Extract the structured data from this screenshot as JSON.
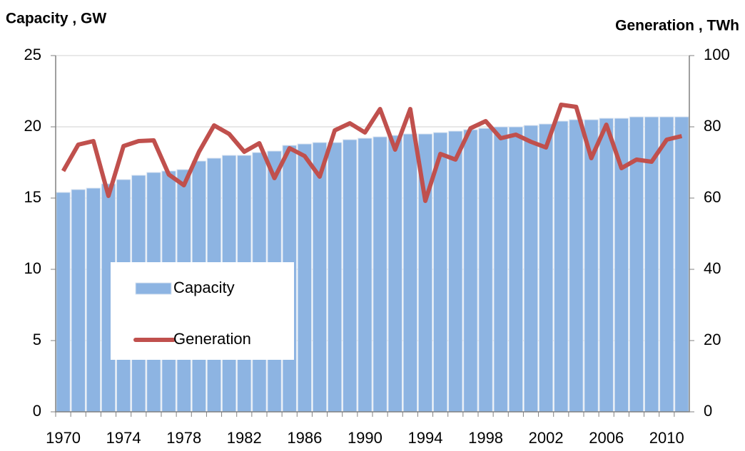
{
  "chart_data": {
    "type": "combo",
    "y_label": "Capacity , GW",
    "y2_label": "Generation , TWh",
    "categories": [
      "1970",
      null,
      null,
      null,
      "1974",
      null,
      null,
      null,
      "1978",
      null,
      null,
      null,
      "1982",
      null,
      null,
      null,
      "1986",
      null,
      null,
      null,
      "1990",
      null,
      null,
      null,
      "1994",
      null,
      null,
      null,
      "1998",
      null,
      null,
      null,
      "2002",
      null,
      null,
      null,
      "2006",
      null,
      null,
      null,
      "2010",
      null
    ],
    "series": [
      {
        "name": "Capacity",
        "type": "bar",
        "color": "#8db4e2",
        "axis": "y",
        "values": [
          15.4,
          15.6,
          15.7,
          16.0,
          16.3,
          16.6,
          16.8,
          16.9,
          17.0,
          17.6,
          17.8,
          18.0,
          18.0,
          18.2,
          18.3,
          18.7,
          18.8,
          18.9,
          18.9,
          19.1,
          19.2,
          19.3,
          19.4,
          19.5,
          19.5,
          19.6,
          19.7,
          19.8,
          19.9,
          20.0,
          20.0,
          20.1,
          20.2,
          20.4,
          20.5,
          20.5,
          20.6,
          20.6,
          20.7,
          20.7,
          20.7,
          20.7
        ]
      },
      {
        "name": "Generation",
        "type": "line",
        "color": "#c0504d",
        "axis": "y2",
        "values": [
          67.6,
          75.0,
          76.0,
          60.6,
          74.6,
          76.0,
          76.2,
          66.6,
          63.6,
          73.0,
          80.4,
          78.0,
          73.0,
          75.4,
          65.6,
          74.0,
          71.8,
          66.0,
          79.0,
          81.0,
          78.4,
          85.0,
          73.6,
          85.0,
          59.2,
          72.4,
          70.8,
          79.6,
          81.6,
          76.8,
          77.8,
          75.8,
          74.2,
          86.2,
          85.6,
          71.2,
          80.6,
          68.4,
          70.8,
          70.2,
          76.4,
          77.4
        ]
      }
    ],
    "ylim": [
      0,
      25
    ],
    "yticks": [
      0,
      5,
      10,
      15,
      20,
      25
    ],
    "y2lim": [
      0,
      100
    ],
    "y2ticks": [
      0,
      20,
      40,
      60,
      80,
      100
    ],
    "grid": true,
    "legend": "left"
  }
}
